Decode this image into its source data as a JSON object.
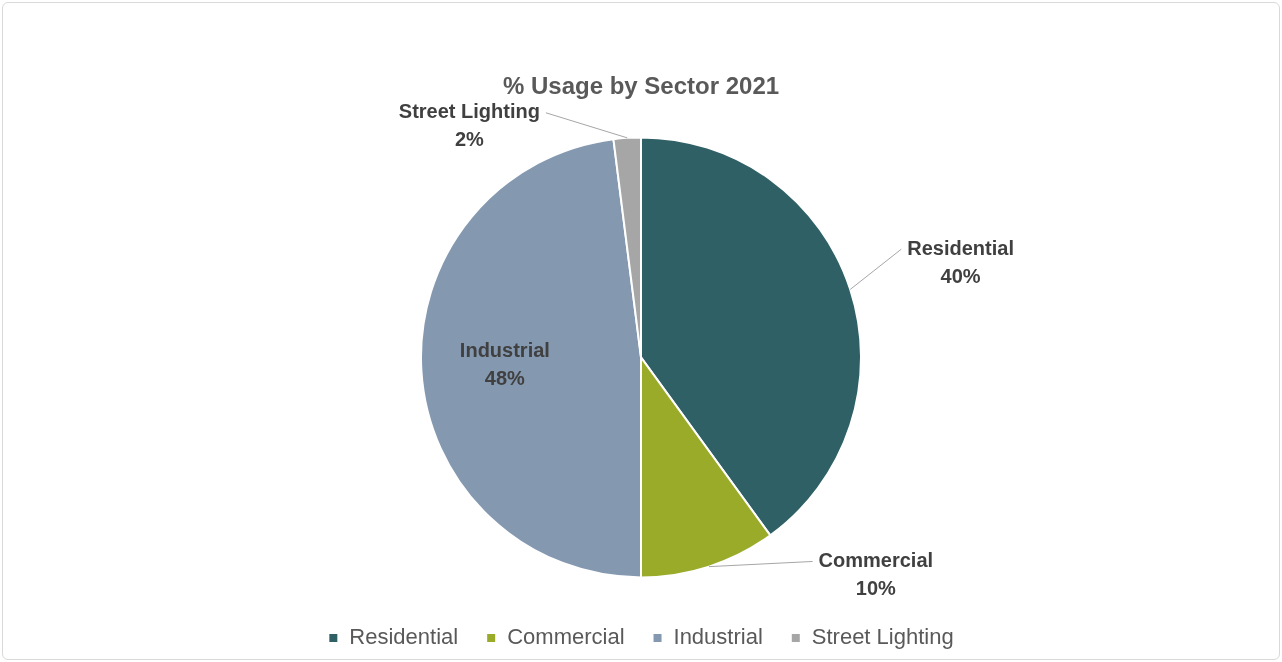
{
  "chart_data": {
    "type": "pie",
    "title": "% Usage by Sector 2021",
    "categories": [
      "Residential",
      "Commercial",
      "Industrial",
      "Street Lighting"
    ],
    "values": [
      40,
      10,
      48,
      2
    ],
    "value_labels": [
      "40%",
      "10%",
      "48%",
      "2%"
    ],
    "colors": [
      "#2e6066",
      "#9aab2a",
      "#8498b0",
      "#a6a6a6"
    ],
    "legend": "bottom"
  }
}
